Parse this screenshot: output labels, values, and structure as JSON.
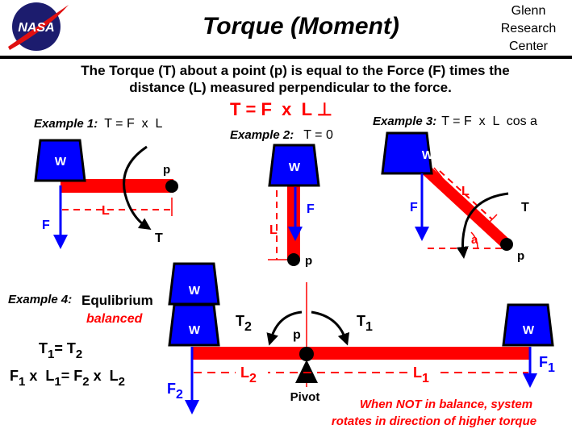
{
  "header": {
    "logo_text": "NASA",
    "title": "Torque  (Moment)",
    "org_line1": "Glenn",
    "org_line2": "Research",
    "org_line3": "Center"
  },
  "description": {
    "line1": "The Torque (T) about a point (p) is equal to the Force (F) times the",
    "line2": "distance (L) measured perpendicular to the force."
  },
  "formula": "T = F  x  L ⊥",
  "example1": {
    "label": "Example 1:",
    "equation": "T = F  x  L",
    "weight": "W",
    "force": "F",
    "length": "L",
    "point": "p",
    "torque": "T"
  },
  "example2": {
    "label": "Example 2:",
    "equation": "T = 0",
    "weight": "W",
    "force": "F",
    "length": "L",
    "point": "p"
  },
  "example3": {
    "label": "Example 3:",
    "equation": "T = F  x  L  cos a",
    "weight": "W",
    "force": "F",
    "length": "L",
    "point": "p",
    "torque": "T",
    "angle": "a"
  },
  "example4": {
    "label": "Example 4:",
    "title": "Equlibrium",
    "status": "balanced",
    "eq1": {
      "t1": "T",
      "s1": "1",
      "eq": "= ",
      "t2": "T",
      "s2": "2"
    },
    "eq2": {
      "f1": "F",
      "s1": "1",
      "x1": " x  L",
      "s2": "1",
      "eq": "= F",
      "s3": "2",
      "x2": " x  L",
      "s4": "2"
    },
    "weight": "W",
    "t2": "T",
    "t2_sub": "2",
    "t1": "T",
    "t1_sub": "1",
    "point": "p",
    "l2": "L",
    "l2_sub": "2",
    "l1": "L",
    "l1_sub": "1",
    "f2": "F",
    "f2_sub": "2",
    "f1": "F",
    "f1_sub": "1",
    "pivot": "Pivot",
    "note_line1": "When NOT in balance, system",
    "note_line2": "rotates in direction of higher torque"
  },
  "colors": {
    "beam": "#ff0000",
    "weight": "#0000ff",
    "force": "#0000ff",
    "logo": "#1c1c6e"
  }
}
